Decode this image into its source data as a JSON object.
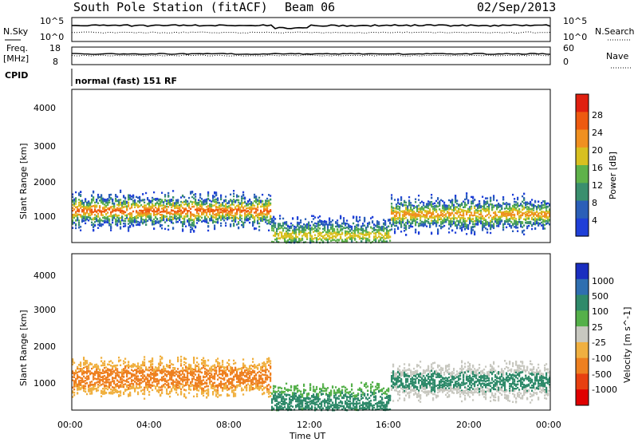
{
  "header": {
    "station": "South Pole Station (fitACF)",
    "beam": "Beam 06",
    "date": "02/Sep/2013"
  },
  "noise_panel": {
    "left_label": "N.Sky",
    "right_label": "N.Search",
    "left_ticks": [
      "10^5",
      "10^0"
    ],
    "right_ticks": [
      "10^5",
      "10^0"
    ]
  },
  "freq_panel": {
    "left_label_1": "Freq.",
    "left_label_2": "[MHz]",
    "right_label": "Nave",
    "left_ticks": [
      "18",
      "8"
    ],
    "right_ticks": [
      "60",
      "0"
    ]
  },
  "cpid": {
    "label": "CPID",
    "text": "normal (fast) 151 RF"
  },
  "power_panel": {
    "ylabel": "Slant Range [km]",
    "yticks": [
      "4000",
      "3000",
      "2000",
      "1000"
    ],
    "colorbar_label": "Power [dB]",
    "colorbar_ticks": [
      "28",
      "24",
      "20",
      "16",
      "12",
      "8",
      "4"
    ],
    "colors": [
      "#1f3fd8",
      "#2b5fb8",
      "#3a8f6e",
      "#5fb24a",
      "#d8c020",
      "#f09020",
      "#ee5a10",
      "#e02010"
    ]
  },
  "velocity_panel": {
    "ylabel": "Slant Range [km]",
    "yticks": [
      "4000",
      "3000",
      "2000",
      "1000"
    ],
    "colorbar_label": "Velocity [m s^-1]",
    "colorbar_ticks": [
      "1000",
      "500",
      "100",
      "25",
      "-25",
      "-100",
      "-500",
      "-1000"
    ],
    "colors": [
      "#1a2ec0",
      "#2f6fb0",
      "#2f8a6a",
      "#55b04a",
      "#c8c8c0",
      "#f0b040",
      "#ee8020",
      "#e84010",
      "#e00000"
    ]
  },
  "xaxis": {
    "label": "Time UT",
    "ticks": [
      "00:00",
      "04:00",
      "08:00",
      "12:00",
      "16:00",
      "20:00",
      "00:00"
    ]
  },
  "chart_data": [
    {
      "type": "heatmap",
      "title": "Power",
      "xlabel": "Time UT",
      "ylabel": "Slant Range [km]",
      "x_range": [
        "00:00",
        "24:00"
      ],
      "ylim": [
        180,
        4500
      ],
      "colorbar": {
        "label": "Power [dB]",
        "range": [
          0,
          32
        ],
        "ticks": [
          4,
          8,
          12,
          16,
          20,
          24,
          28
        ]
      },
      "scatter_bands": [
        {
          "t_start": 0,
          "t_end": 10,
          "range_center_km": 1100,
          "peak_power_db": 28
        },
        {
          "t_start": 10,
          "t_end": 16,
          "range_center_km": 400,
          "peak_power_db": 20
        },
        {
          "t_start": 16,
          "t_end": 24,
          "range_center_km": 1000,
          "peak_power_db": 24
        }
      ]
    },
    {
      "type": "heatmap",
      "title": "Velocity",
      "xlabel": "Time UT",
      "ylabel": "Slant Range [km]",
      "x_range": [
        "00:00",
        "24:00"
      ],
      "ylim": [
        180,
        4500
      ],
      "colorbar": {
        "label": "Velocity [m s^-1]",
        "range": [
          -1200,
          1200
        ],
        "ticks": [
          1000,
          500,
          100,
          25,
          -25,
          -100,
          -500,
          -1000
        ]
      },
      "scatter_bands": [
        {
          "t_start": 0,
          "t_end": 10,
          "range_center_km": 1100,
          "velocity_ms": -300
        },
        {
          "t_start": 10,
          "t_end": 16,
          "range_center_km": 400,
          "velocity_ms": 100
        },
        {
          "t_start": 16,
          "t_end": 24,
          "range_center_km": 1000,
          "velocity_ms": 200
        }
      ]
    }
  ]
}
